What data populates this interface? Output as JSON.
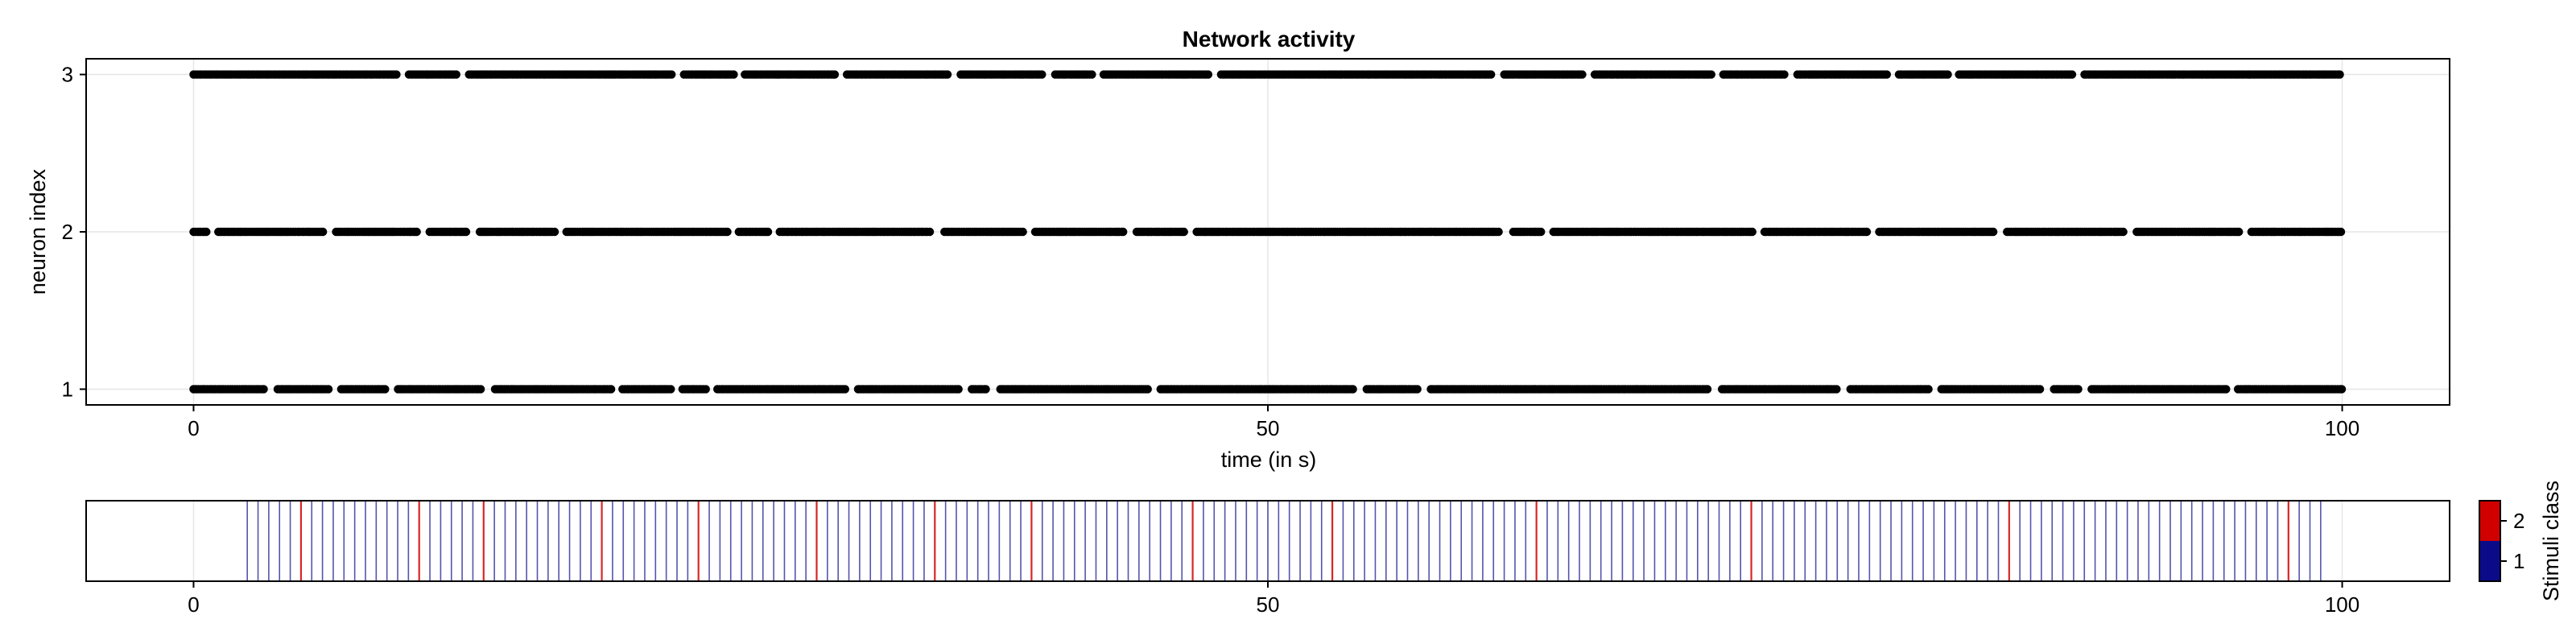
{
  "chart_data": [
    {
      "type": "scatter",
      "title": "Network activity",
      "xlabel": "time (in s)",
      "ylabel": "neuron index",
      "xlim": [
        -5,
        105
      ],
      "ylim": [
        0.9,
        3.1
      ],
      "xticks": [
        0,
        50,
        100
      ],
      "xtick_labels": [
        "0",
        "50",
        "100"
      ],
      "yticks": [
        1,
        2,
        3
      ],
      "ytick_labels": [
        "1",
        "2",
        "3"
      ],
      "grid": true,
      "marker_color": "#000000",
      "series": [
        {
          "neuron": 1,
          "spike_time_range": [
            0,
            100
          ],
          "gaps": [
            3.6,
            6.6,
            9.2,
            13.7,
            19.7,
            22.5,
            24.1,
            30.6,
            35.9,
            37.2,
            44.7,
            54.3,
            57.3,
            70.8,
            76.8,
            81.1,
            86.3,
            88.0,
            94.9
          ]
        },
        {
          "neuron": 2,
          "spike_time_range": [
            0,
            100
          ],
          "gaps": [
            0.9,
            6.3,
            10.7,
            13.0,
            17.1,
            25.1,
            27.0,
            34.6,
            38.9,
            43.6,
            46.4,
            61.1,
            63.0,
            72.8,
            78.2,
            84.1,
            90.1,
            95.5
          ]
        },
        {
          "neuron": 3,
          "spike_time_range": [
            0,
            100
          ],
          "gaps": [
            9.7,
            12.5,
            22.5,
            25.4,
            30.1,
            35.4,
            39.8,
            42.1,
            47.5,
            60.7,
            64.9,
            70.9,
            74.3,
            79.1,
            81.9,
            87.7
          ]
        }
      ]
    },
    {
      "type": "heatmap",
      "xlim": [
        -5,
        105
      ],
      "xticks": [
        0,
        50,
        100
      ],
      "xtick_labels": [
        "0",
        "50",
        "100"
      ],
      "colorbar_label": "Stimuli class",
      "colorbar_ticks": [
        "1",
        "2"
      ],
      "classes": [
        {
          "value": 1,
          "color": "#0b0b8a"
        },
        {
          "value": 2,
          "color": "#d00000"
        }
      ],
      "stimulus_time_range": [
        2.5,
        99
      ],
      "stimulus_interval": 0.5,
      "class_2_times": [
        5.0,
        10.5,
        13.5,
        19.0,
        23.5,
        29.0,
        34.5,
        39.0,
        46.5,
        53.0,
        62.5,
        72.5,
        84.5,
        97.5
      ]
    }
  ]
}
